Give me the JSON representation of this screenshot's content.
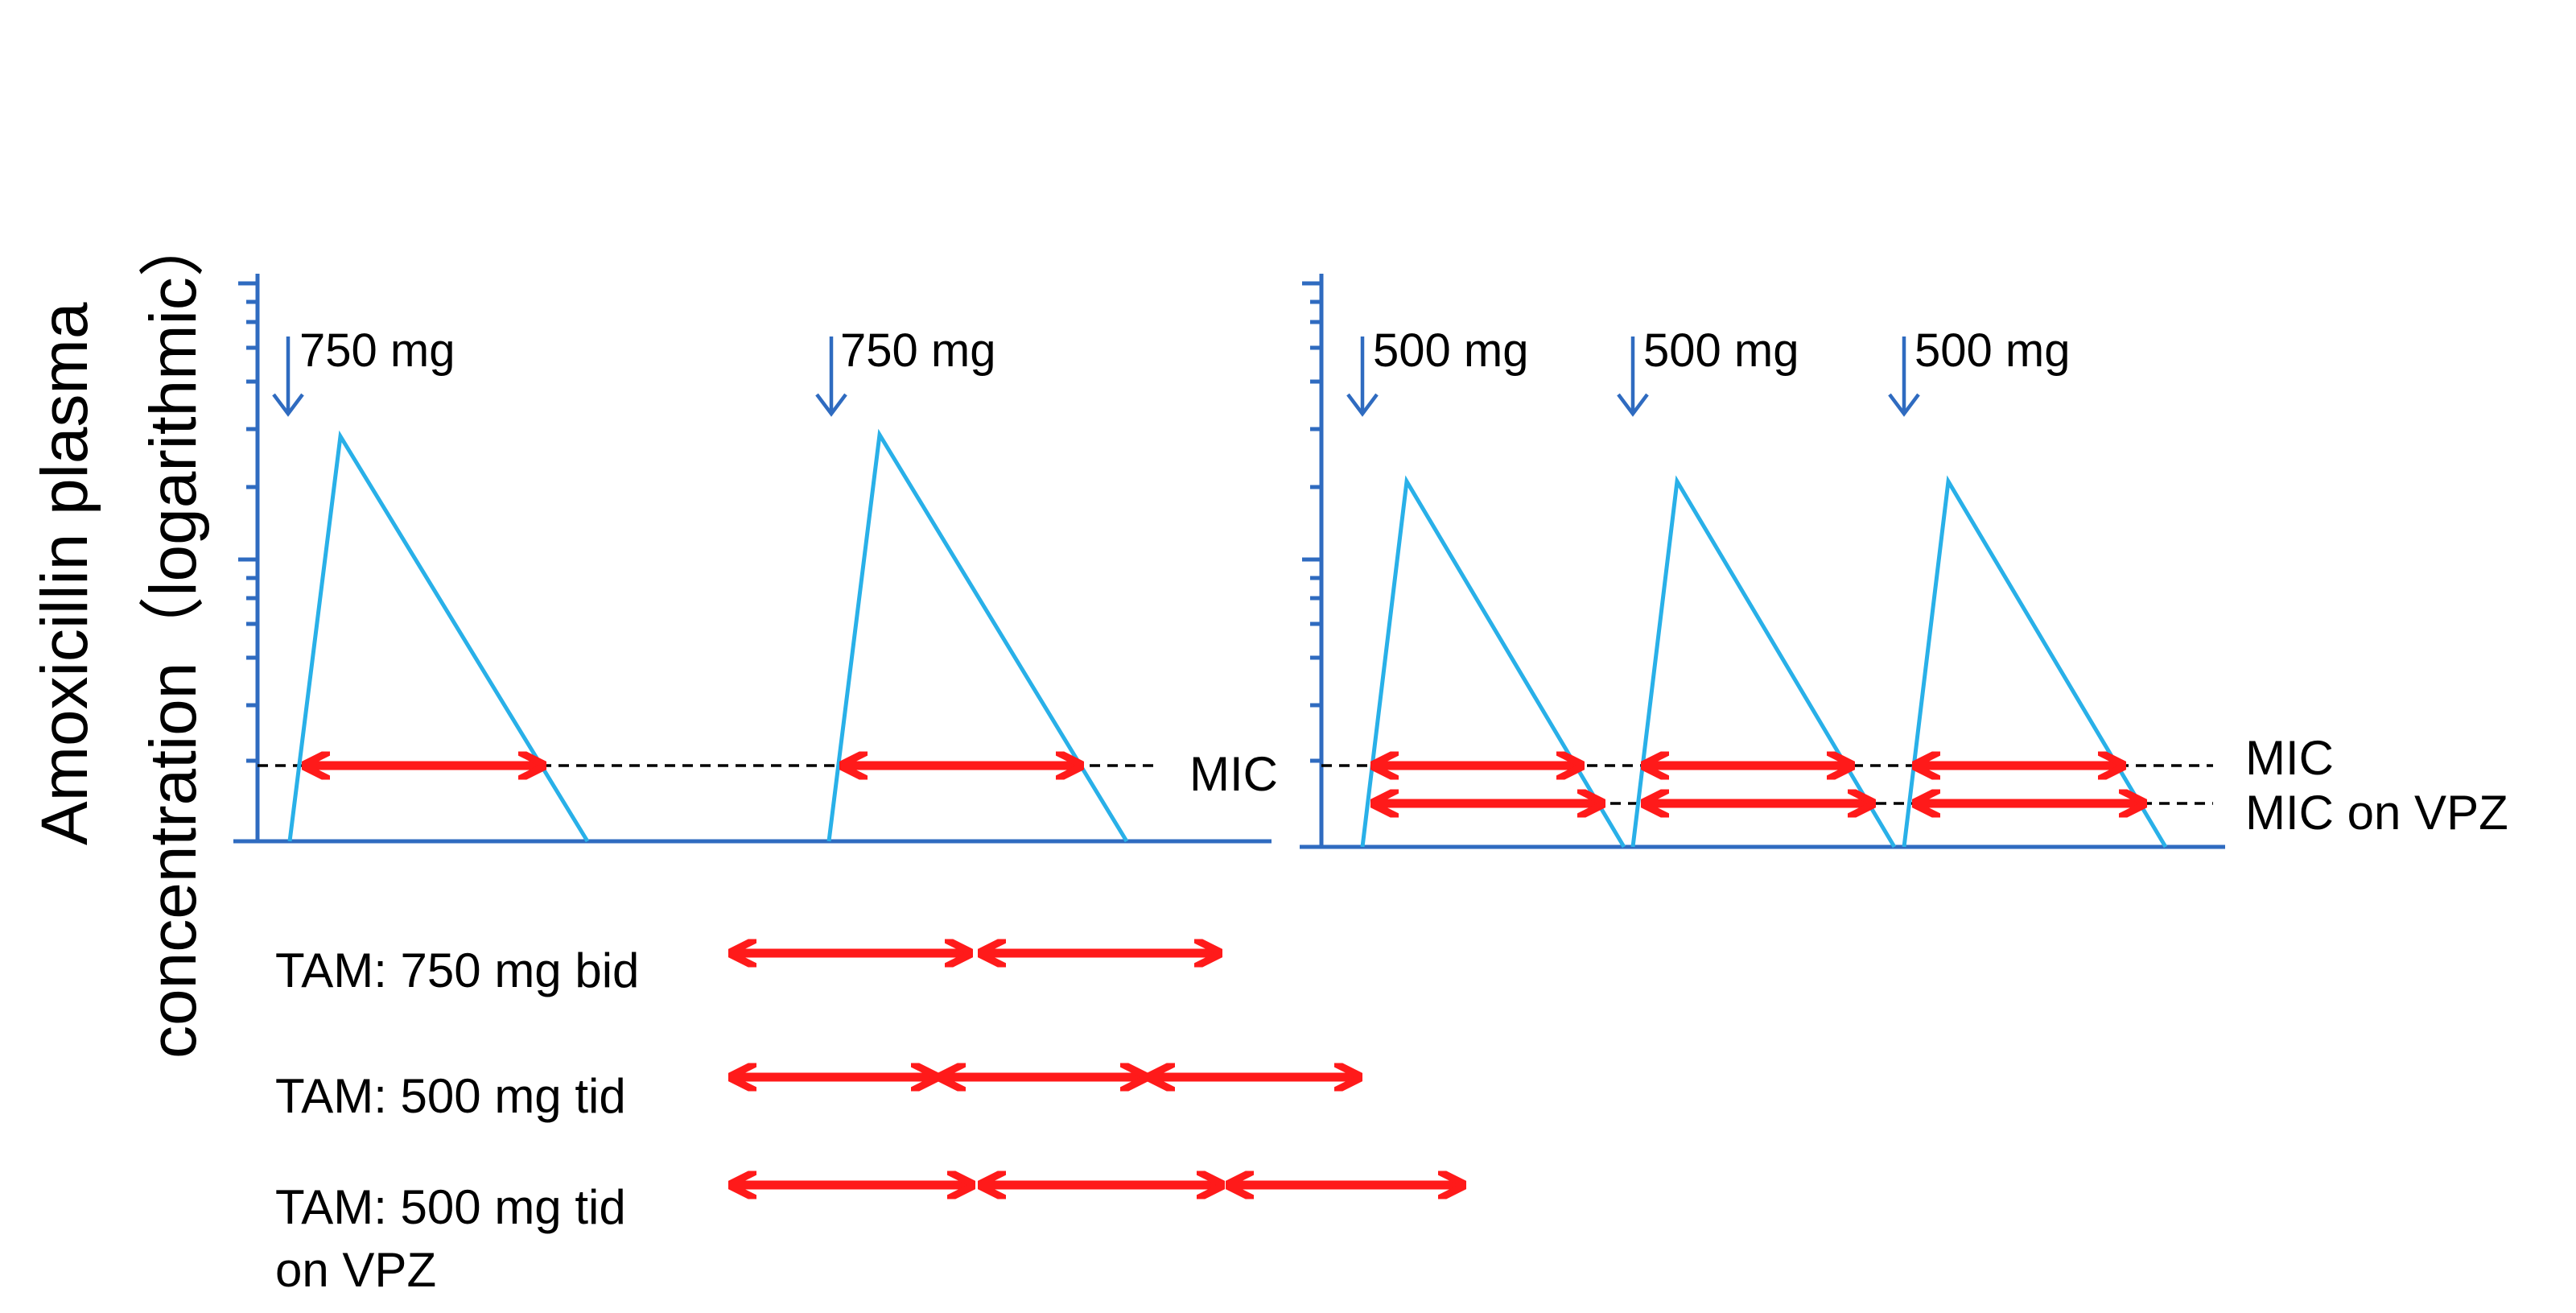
{
  "colors": {
    "axis": "#2F6BC0",
    "dose_arrow": "#2F6BC0",
    "curve": "#29B0E8",
    "time_above_mic": "#FF1A1A",
    "mic_line": "#000000",
    "text": "#000000"
  },
  "y_axis_label": {
    "line1": "Amoxicillin plasma",
    "line2": "concentration（logarithmic）"
  },
  "left_panel": {
    "doses": [
      "750 mg",
      "750 mg"
    ],
    "mic_label": "MIC"
  },
  "right_panel": {
    "doses": [
      "500 mg",
      "500 mg",
      "500 mg"
    ],
    "mic_label": "MIC",
    "mic_vpz_label": "MIC on VPZ"
  },
  "tam_rows": [
    {
      "label_lines": [
        "TAM: 750 mg bid"
      ],
      "segments": 2
    },
    {
      "label_lines": [
        "TAM: 500 mg tid"
      ],
      "segments": 3
    },
    {
      "label_lines": [
        "TAM: 500 mg tid",
        "on VPZ"
      ],
      "segments": 3
    }
  ]
}
